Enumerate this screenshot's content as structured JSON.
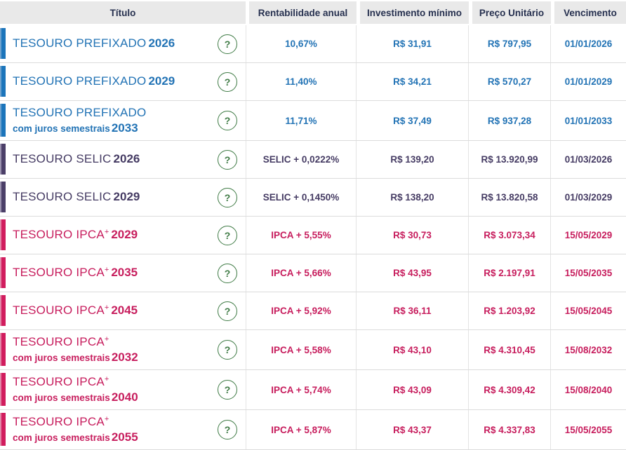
{
  "header": {
    "columns": [
      "Título",
      "Rentabilidade anual",
      "Investimento mínimo",
      "Preço Unitário",
      "Vencimento"
    ]
  },
  "icons": {
    "help_glyph": "?",
    "help_icon_name": "question-mark-circle-icon"
  },
  "colors": {
    "prefixado_blue": "#2273B5",
    "selic_purple": "#453B63",
    "ipca_pink": "#C71D5D",
    "header_bg": "#E9E9E9",
    "header_text": "#26304F",
    "help_green": "#3F7B45",
    "row_divider": "#DCDCDC"
  },
  "rows": [
    {
      "theme": "blue",
      "name": "TESOURO PREFIXADO",
      "sup": "",
      "subtitle": "",
      "year": "2026",
      "rentabilidade": "10,67%",
      "investimento": "R$ 31,91",
      "preco": "R$ 797,95",
      "vencimento": "01/01/2026"
    },
    {
      "theme": "blue",
      "name": "TESOURO PREFIXADO",
      "sup": "",
      "subtitle": "",
      "year": "2029",
      "rentabilidade": "11,40%",
      "investimento": "R$ 34,21",
      "preco": "R$ 570,27",
      "vencimento": "01/01/2029"
    },
    {
      "theme": "blue",
      "name": "TESOURO PREFIXADO",
      "sup": "",
      "subtitle": "com juros semestrais",
      "year": "2033",
      "rentabilidade": "11,71%",
      "investimento": "R$ 37,49",
      "preco": "R$ 937,28",
      "vencimento": "01/01/2033"
    },
    {
      "theme": "purple",
      "name": "TESOURO SELIC",
      "sup": "",
      "subtitle": "",
      "year": "2026",
      "rentabilidade": "SELIC + 0,0222%",
      "investimento": "R$ 139,20",
      "preco": "R$ 13.920,99",
      "vencimento": "01/03/2026"
    },
    {
      "theme": "purple",
      "name": "TESOURO SELIC",
      "sup": "",
      "subtitle": "",
      "year": "2029",
      "rentabilidade": "SELIC + 0,1450%",
      "investimento": "R$ 138,20",
      "preco": "R$ 13.820,58",
      "vencimento": "01/03/2029"
    },
    {
      "theme": "pink",
      "name": "TESOURO IPCA",
      "sup": "+",
      "subtitle": "",
      "year": "2029",
      "rentabilidade": "IPCA + 5,55%",
      "investimento": "R$ 30,73",
      "preco": "R$ 3.073,34",
      "vencimento": "15/05/2029"
    },
    {
      "theme": "pink",
      "name": "TESOURO IPCA",
      "sup": "+",
      "subtitle": "",
      "year": "2035",
      "rentabilidade": "IPCA + 5,66%",
      "investimento": "R$ 43,95",
      "preco": "R$ 2.197,91",
      "vencimento": "15/05/2035"
    },
    {
      "theme": "pink",
      "name": "TESOURO IPCA",
      "sup": "+",
      "subtitle": "",
      "year": "2045",
      "rentabilidade": "IPCA + 5,92%",
      "investimento": "R$ 36,11",
      "preco": "R$ 1.203,92",
      "vencimento": "15/05/2045"
    },
    {
      "theme": "pink",
      "name": "TESOURO IPCA",
      "sup": "+",
      "subtitle": "com juros semestrais",
      "year": "2032",
      "rentabilidade": "IPCA + 5,58%",
      "investimento": "R$ 43,10",
      "preco": "R$ 4.310,45",
      "vencimento": "15/08/2032"
    },
    {
      "theme": "pink",
      "name": "TESOURO IPCA",
      "sup": "+",
      "subtitle": "com juros semestrais",
      "year": "2040",
      "rentabilidade": "IPCA + 5,74%",
      "investimento": "R$ 43,09",
      "preco": "R$ 4.309,42",
      "vencimento": "15/08/2040"
    },
    {
      "theme": "pink",
      "name": "TESOURO IPCA",
      "sup": "+",
      "subtitle": "com juros semestrais",
      "year": "2055",
      "rentabilidade": "IPCA + 5,87%",
      "investimento": "R$ 43,37",
      "preco": "R$ 4.337,83",
      "vencimento": "15/05/2055"
    }
  ]
}
